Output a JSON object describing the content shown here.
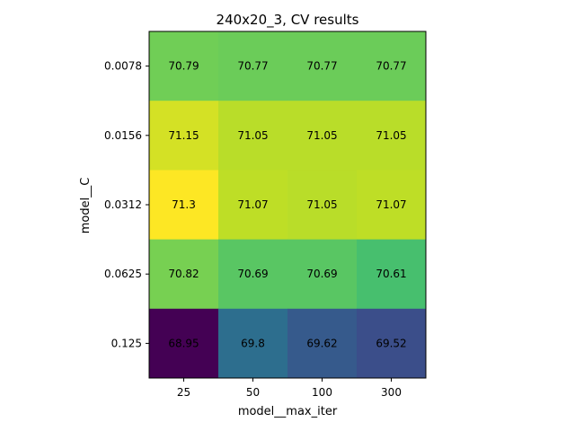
{
  "chart_data": {
    "type": "heatmap",
    "title": "240x20_3, CV results",
    "xlabel": "model__max_iter",
    "ylabel": "model__C",
    "x_categories": [
      "25",
      "50",
      "100",
      "300"
    ],
    "y_categories": [
      "0.0078",
      "0.0156",
      "0.0312",
      "0.0625",
      "0.125"
    ],
    "values": [
      [
        70.79,
        70.77,
        70.77,
        70.77
      ],
      [
        71.15,
        71.05,
        71.05,
        71.05
      ],
      [
        71.3,
        71.07,
        71.05,
        71.07
      ],
      [
        70.82,
        70.69,
        70.69,
        70.61
      ],
      [
        68.95,
        69.8,
        69.62,
        69.52
      ]
    ],
    "colormap": "viridis",
    "grid": false
  }
}
